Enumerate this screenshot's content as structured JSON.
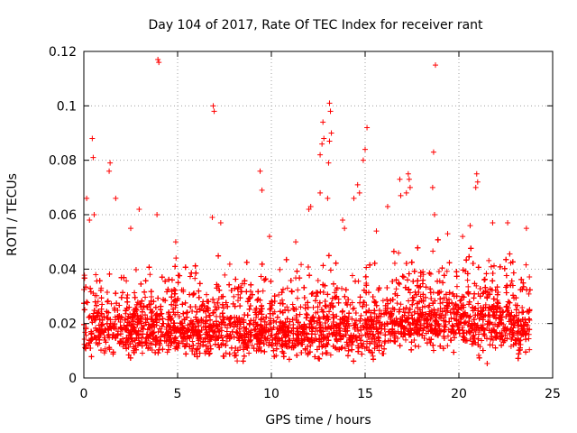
{
  "chart_data": {
    "type": "scatter",
    "title": "Day 104 of 2017, Rate Of TEC Index for receiver rant",
    "xlabel": "GPS time / hours",
    "ylabel": "ROTI / TECUs",
    "xlim": [
      0,
      25
    ],
    "ylim": [
      0,
      0.12
    ],
    "x_ticks": [
      0,
      5,
      10,
      15,
      20,
      25
    ],
    "y_ticks": [
      0,
      0.02,
      0.04,
      0.06,
      0.08,
      0.1,
      0.12
    ],
    "x_tick_labels": [
      "0",
      "5",
      "10",
      "15",
      "20",
      "25"
    ],
    "y_tick_labels": [
      "0",
      "0.02",
      "0.04",
      "0.06",
      "0.08",
      "0.1",
      "0.12"
    ],
    "grid": true,
    "marker": "plus",
    "series_color": "#ff0000",
    "data_range_x": [
      0,
      23.8
    ],
    "series": [
      {
        "points": [
          [
            3.95,
            0.117
          ],
          [
            4.0,
            0.116
          ],
          [
            18.75,
            0.115
          ],
          [
            6.9,
            0.1
          ],
          [
            6.95,
            0.098
          ],
          [
            13.1,
            0.101
          ],
          [
            13.15,
            0.098
          ],
          [
            12.75,
            0.094
          ],
          [
            15.1,
            0.092
          ],
          [
            13.2,
            0.09
          ],
          [
            12.8,
            0.088
          ],
          [
            0.45,
            0.088
          ],
          [
            13.1,
            0.087
          ],
          [
            12.7,
            0.086
          ],
          [
            15.0,
            0.084
          ],
          [
            18.65,
            0.083
          ],
          [
            12.6,
            0.082
          ],
          [
            0.5,
            0.081
          ],
          [
            14.9,
            0.08
          ],
          [
            1.4,
            0.079
          ],
          [
            13.05,
            0.079
          ],
          [
            1.35,
            0.076
          ],
          [
            9.4,
            0.076
          ],
          [
            17.3,
            0.075
          ],
          [
            20.95,
            0.075
          ],
          [
            17.35,
            0.073
          ],
          [
            21.0,
            0.072
          ],
          [
            14.6,
            0.071
          ],
          [
            16.85,
            0.073
          ],
          [
            17.4,
            0.07
          ],
          [
            9.5,
            0.069
          ],
          [
            20.9,
            0.07
          ],
          [
            14.7,
            0.068
          ],
          [
            18.6,
            0.07
          ],
          [
            12.6,
            0.068
          ],
          [
            0.15,
            0.066
          ],
          [
            1.7,
            0.066
          ],
          [
            13.0,
            0.066
          ],
          [
            12.1,
            0.063
          ],
          [
            14.4,
            0.066
          ],
          [
            16.9,
            0.067
          ],
          [
            17.2,
            0.068
          ],
          [
            2.95,
            0.062
          ],
          [
            12.0,
            0.062
          ],
          [
            16.2,
            0.063
          ],
          [
            3.9,
            0.06
          ],
          [
            6.85,
            0.059
          ],
          [
            18.7,
            0.06
          ],
          [
            0.55,
            0.06
          ],
          [
            0.3,
            0.058
          ],
          [
            13.8,
            0.058
          ],
          [
            21.8,
            0.057
          ],
          [
            7.3,
            0.057
          ],
          [
            20.6,
            0.056
          ],
          [
            22.6,
            0.057
          ],
          [
            23.6,
            0.055
          ],
          [
            13.9,
            0.055
          ],
          [
            2.5,
            0.055
          ],
          [
            15.6,
            0.054
          ],
          [
            19.4,
            0.053
          ],
          [
            9.9,
            0.052
          ],
          [
            4.9,
            0.05
          ],
          [
            20.2,
            0.052
          ],
          [
            11.3,
            0.05
          ]
        ]
      }
    ]
  }
}
